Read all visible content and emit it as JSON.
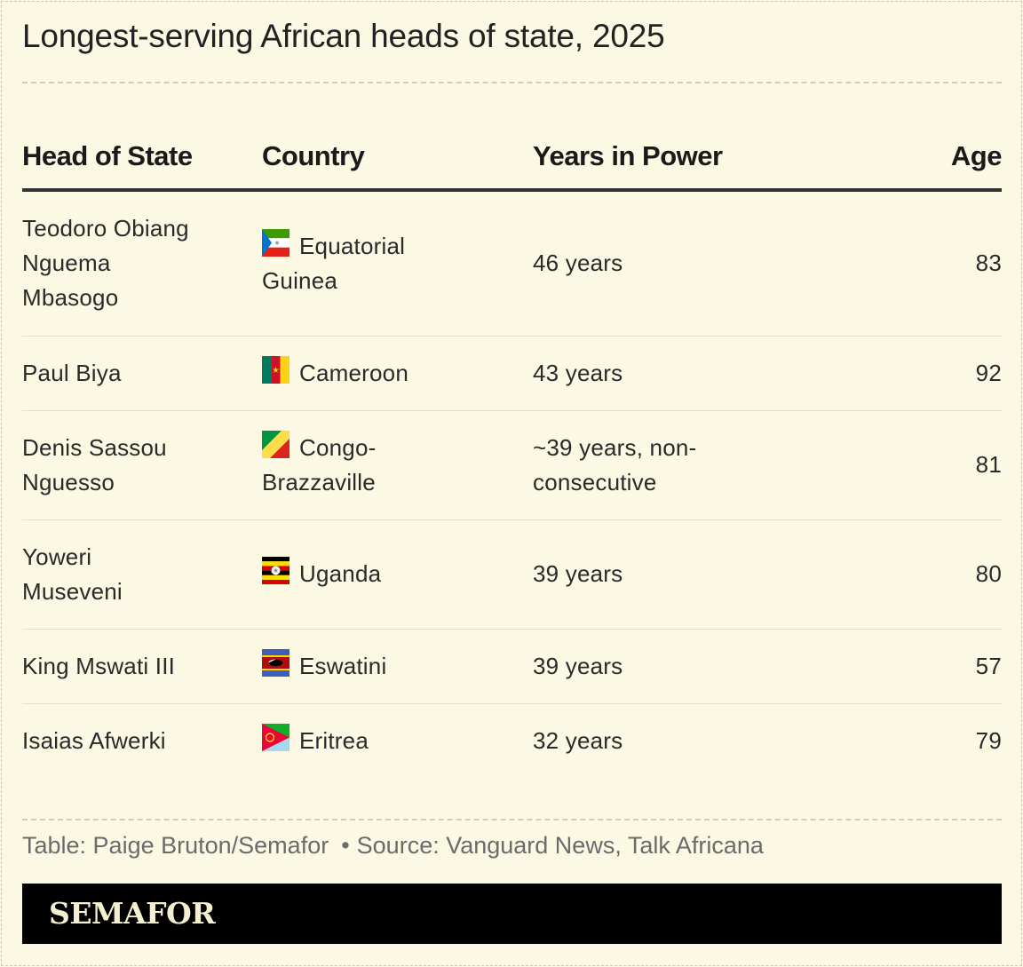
{
  "chart_data": {
    "type": "table",
    "title": "Longest-serving African heads of state, 2025",
    "columns": [
      "Head of State",
      "Country",
      "Years in Power",
      "Age"
    ],
    "rows": [
      {
        "head_lines": [
          "Teodoro Obiang",
          "Nguema",
          "Mbasogo"
        ],
        "country_lines": [
          "Equatorial",
          "Guinea"
        ],
        "flag": "equatorial-guinea-flag-icon",
        "years_lines": [
          "46 years"
        ],
        "age": "83"
      },
      {
        "head_lines": [
          "Paul Biya"
        ],
        "country_lines": [
          "Cameroon"
        ],
        "flag": "cameroon-flag-icon",
        "years_lines": [
          "43 years"
        ],
        "age": "92"
      },
      {
        "head_lines": [
          "Denis Sassou",
          "Nguesso"
        ],
        "country_lines": [
          "Congo-",
          "Brazzaville"
        ],
        "flag": "congo-flag-icon",
        "years_lines": [
          "~39 years, non-",
          "consecutive"
        ],
        "age": "81"
      },
      {
        "head_lines": [
          "Yoweri",
          "Museveni"
        ],
        "country_lines": [
          "Uganda"
        ],
        "flag": "uganda-flag-icon",
        "years_lines": [
          "39 years"
        ],
        "age": "80"
      },
      {
        "head_lines": [
          "King Mswati III"
        ],
        "country_lines": [
          "Eswatini"
        ],
        "flag": "eswatini-flag-icon",
        "years_lines": [
          "39 years"
        ],
        "age": "57"
      },
      {
        "head_lines": [
          "Isaias Afwerki"
        ],
        "country_lines": [
          "Eritrea"
        ],
        "flag": "eritrea-flag-icon",
        "years_lines": [
          "32 years"
        ],
        "age": "79"
      }
    ]
  },
  "footer": {
    "credit": "Table: Paige Bruton/Semafor",
    "separator": "•",
    "source": "Source: Vanguard News, Talk Africana"
  },
  "brand": "SEMAFOR",
  "colors": {
    "background": "#fbf8e4",
    "header_rule": "#333333",
    "row_rule": "#e2dfcd",
    "brand_bar": "#000000",
    "brand_text": "#f4efd0"
  }
}
